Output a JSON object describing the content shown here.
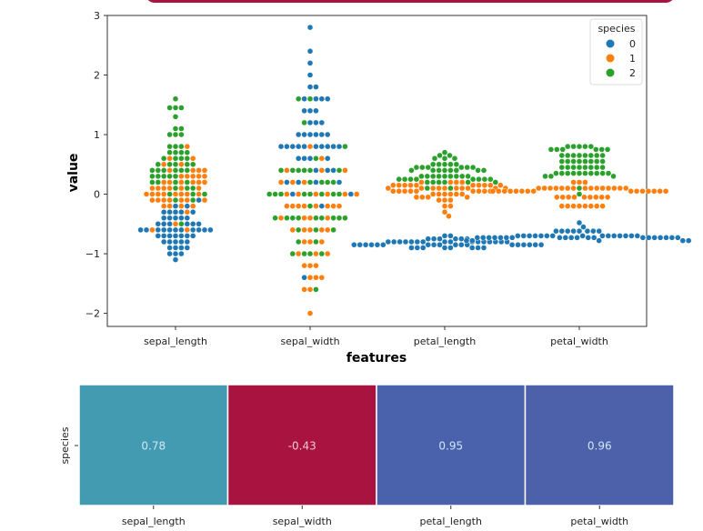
{
  "colors": {
    "species_0": "#1f77b4",
    "species_1": "#ff7f0e",
    "species_2": "#2ca02c",
    "banner": "#a8133f"
  },
  "chart_data": [
    {
      "type": "scatter",
      "subtype": "swarm",
      "xlabel": "features",
      "ylabel": "value",
      "categories": [
        "sepal_length",
        "sepal_width",
        "petal_length",
        "petal_width"
      ],
      "ylim": [
        -2.22,
        3.0
      ],
      "yticks": [
        "3",
        "2",
        "1",
        "0",
        "−1",
        "−2"
      ],
      "ytick_values": [
        3,
        2,
        1,
        0,
        -1,
        -2
      ],
      "legend": {
        "title": "species",
        "entries": [
          "0",
          "1",
          "2"
        ],
        "placement": "top-right"
      },
      "series_bins_note": "each series lists [value, count] bins per feature",
      "series": [
        {
          "name": "0",
          "data": {
            "sepal_length": [
              [
                -1.1,
                1
              ],
              [
                -1.0,
                3
              ],
              [
                -0.9,
                4
              ],
              [
                -0.8,
                5
              ],
              [
                -0.7,
                7
              ],
              [
                -0.6,
                11
              ],
              [
                -0.5,
                6
              ],
              [
                -0.4,
                5
              ],
              [
                -0.3,
                5
              ],
              [
                -0.2,
                2
              ],
              [
                -0.1,
                1
              ]
            ],
            "sepal_width": [
              [
                2.8,
                1
              ],
              [
                2.4,
                1
              ],
              [
                2.2,
                1
              ],
              [
                2.0,
                1
              ],
              [
                1.8,
                2
              ],
              [
                1.6,
                4
              ],
              [
                1.4,
                3
              ],
              [
                1.2,
                3
              ],
              [
                1.0,
                6
              ],
              [
                0.8,
                10
              ],
              [
                0.6,
                4
              ],
              [
                0.4,
                3
              ],
              [
                0.2,
                4
              ],
              [
                0.0,
                2
              ],
              [
                -0.2,
                1
              ],
              [
                -1.4,
                1
              ]
            ],
            "petal_length": [
              [
                -0.7,
                2
              ],
              [
                -0.75,
                6
              ],
              [
                -0.8,
                16
              ],
              [
                -0.85,
                18
              ],
              [
                -0.9,
                8
              ]
            ],
            "petal_width": [
              [
                -0.48,
                1
              ],
              [
                -0.55,
                1
              ],
              [
                -0.62,
                8
              ],
              [
                -0.7,
                15
              ],
              [
                -0.73,
                20
              ],
              [
                -0.78,
                5
              ]
            ]
          }
        },
        {
          "name": "1",
          "data": {
            "sepal_length": [
              [
                -0.6,
                2
              ],
              [
                -0.5,
                1
              ],
              [
                -0.3,
                1
              ],
              [
                -0.2,
                4
              ],
              [
                -0.1,
                7
              ],
              [
                0.0,
                8
              ],
              [
                0.1,
                6
              ],
              [
                0.2,
                6
              ],
              [
                0.3,
                5
              ],
              [
                0.4,
                4
              ],
              [
                0.5,
                2
              ],
              [
                0.6,
                2
              ],
              [
                0.8,
                1
              ]
            ],
            "sepal_width": [
              [
                0.8,
                1
              ],
              [
                0.6,
                1
              ],
              [
                0.4,
                3
              ],
              [
                0.2,
                3
              ],
              [
                0.0,
                6
              ],
              [
                -0.2,
                8
              ],
              [
                -0.4,
                4
              ],
              [
                -0.6,
                5
              ],
              [
                -0.8,
                3
              ],
              [
                -1.0,
                3
              ],
              [
                -1.2,
                3
              ],
              [
                -1.4,
                3
              ],
              [
                -1.6,
                2
              ],
              [
                -2.0,
                1
              ]
            ],
            "petal_length": [
              [
                0.2,
                4
              ],
              [
                0.15,
                10
              ],
              [
                0.1,
                10
              ],
              [
                0.05,
                9
              ],
              [
                0.0,
                6
              ],
              [
                -0.05,
                4
              ],
              [
                -0.1,
                3
              ],
              [
                -0.2,
                2
              ],
              [
                -0.3,
                1
              ],
              [
                -0.37,
                1
              ]
            ],
            "petal_width": [
              [
                0.2,
                3
              ],
              [
                0.1,
                15
              ],
              [
                0.05,
                15
              ],
              [
                -0.05,
                9
              ],
              [
                -0.2,
                8
              ]
            ]
          }
        },
        {
          "name": "2",
          "data": {
            "sepal_length": [
              [
                -0.5,
                1
              ],
              [
                -0.1,
                2
              ],
              [
                0.0,
                3
              ],
              [
                0.1,
                3
              ],
              [
                0.2,
                4
              ],
              [
                0.3,
                5
              ],
              [
                0.4,
                6
              ],
              [
                0.5,
                5
              ],
              [
                0.6,
                4
              ],
              [
                0.7,
                4
              ],
              [
                0.8,
                3
              ],
              [
                1.0,
                3
              ],
              [
                1.1,
                2
              ],
              [
                1.3,
                1
              ],
              [
                1.45,
                3
              ],
              [
                1.6,
                1
              ]
            ],
            "sepal_width": [
              [
                1.6,
                2
              ],
              [
                1.2,
                1
              ],
              [
                0.8,
                1
              ],
              [
                0.6,
                1
              ],
              [
                0.4,
                6
              ],
              [
                0.2,
                4
              ],
              [
                0.0,
                8
              ],
              [
                -0.2,
                1
              ],
              [
                -0.4,
                9
              ],
              [
                -0.6,
                3
              ],
              [
                -0.8,
                2
              ],
              [
                -1.0,
                4
              ],
              [
                -1.6,
                1
              ]
            ],
            "petal_length": [
              [
                0.7,
                1
              ],
              [
                0.65,
                2
              ],
              [
                0.6,
                3
              ],
              [
                0.5,
                5
              ],
              [
                0.45,
                6
              ],
              [
                0.4,
                8
              ],
              [
                0.3,
                9
              ],
              [
                0.25,
                8
              ],
              [
                0.2,
                6
              ],
              [
                0.1,
                2
              ]
            ],
            "petal_width": [
              [
                0.8,
                5
              ],
              [
                0.75,
                6
              ],
              [
                0.65,
                8
              ],
              [
                0.55,
                8
              ],
              [
                0.45,
                8
              ],
              [
                0.35,
                10
              ],
              [
                0.3,
                3
              ],
              [
                0.1,
                1
              ],
              [
                0.0,
                1
              ]
            ]
          }
        }
      ]
    },
    {
      "type": "heatmap",
      "ylabel": "species",
      "row_labels": [
        ""
      ],
      "categories": [
        "sepal_length",
        "sepal_width",
        "petal_length",
        "petal_width"
      ],
      "values": [
        0.78,
        -0.43,
        0.95,
        0.96
      ],
      "annotations": [
        "0.78",
        "-0.43",
        "0.95",
        "0.96"
      ],
      "cell_colors": [
        "#439bb2",
        "#a8133f",
        "#4a62ab",
        "#4d60aa"
      ]
    }
  ]
}
